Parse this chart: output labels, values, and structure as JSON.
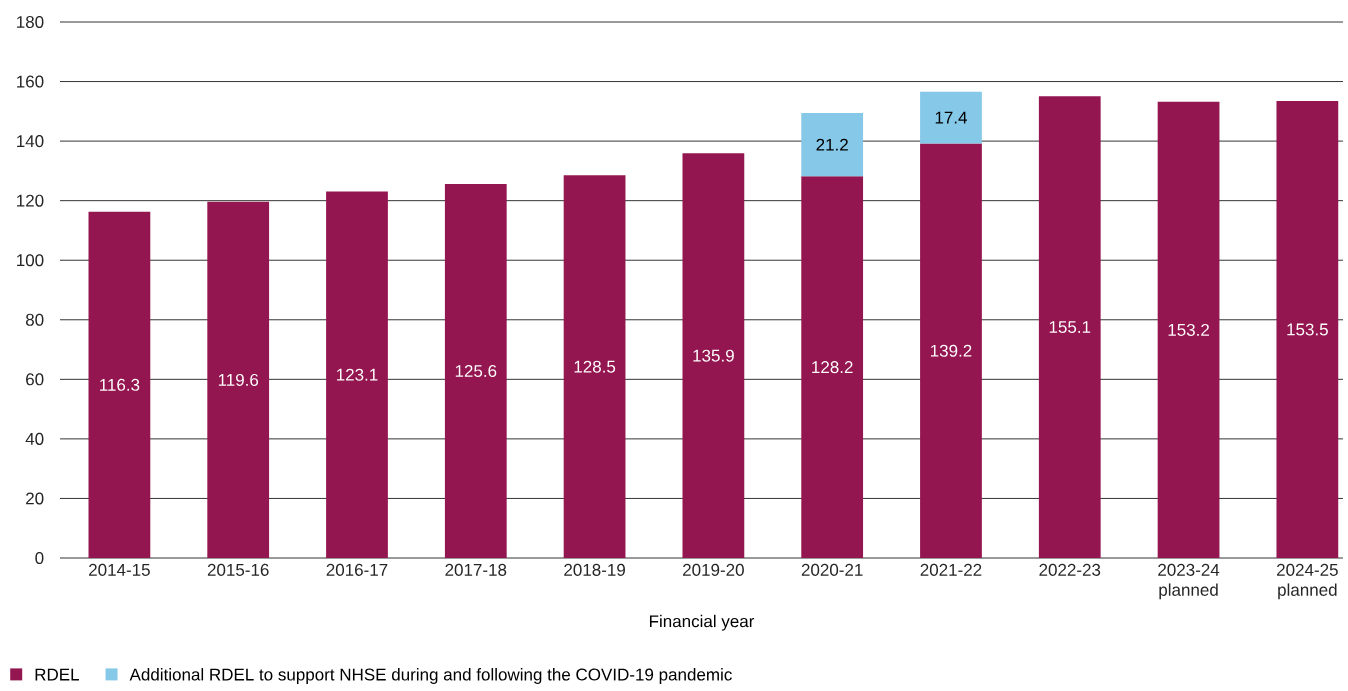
{
  "chart_data": {
    "type": "bar",
    "stacked": true,
    "xlabel": "Financial year",
    "categories": [
      "2014-15",
      "2015-16",
      "2016-17",
      "2017-18",
      "2018-19",
      "2019-20",
      "2020-21",
      "2021-22",
      "2022-23",
      "2023-24 planned",
      "2024-25 planned"
    ],
    "series": [
      {
        "name": "RDEL",
        "color": "#941651",
        "values": [
          116.3,
          119.6,
          123.1,
          125.6,
          128.5,
          135.9,
          128.2,
          139.2,
          155.1,
          153.2,
          153.5
        ]
      },
      {
        "name": "Additional RDEL to support NHSE during and following the COVID-19 pandemic",
        "color": "#85c8e8",
        "values": [
          null,
          null,
          null,
          null,
          null,
          null,
          21.2,
          17.4,
          null,
          null,
          null
        ]
      }
    ],
    "ylim": [
      0,
      180
    ],
    "yticks": [
      0,
      20,
      40,
      60,
      80,
      100,
      120,
      140,
      160,
      180
    ],
    "grid": "y",
    "legend": "bottom left",
    "data_labels": true
  }
}
